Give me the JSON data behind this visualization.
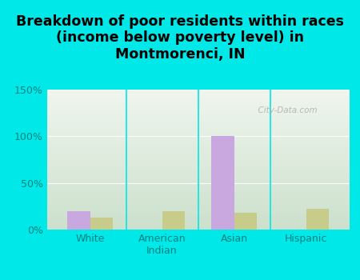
{
  "title": "Breakdown of poor residents within races\n(income below poverty level) in\nMontmorenci, IN",
  "categories": [
    "White",
    "American\nIndian",
    "Asian",
    "Hispanic"
  ],
  "montmorenci_values": [
    20,
    0,
    100,
    0
  ],
  "indiana_values": [
    13,
    20,
    18,
    22
  ],
  "montmorenci_color": "#c9a8e0",
  "indiana_color": "#c8cc8a",
  "background_color": "#00e8e8",
  "plot_bg_top": "#f0f5ee",
  "plot_bg_bottom": "#cce0cc",
  "ylim": [
    0,
    150
  ],
  "yticks": [
    0,
    50,
    100,
    150
  ],
  "ytick_labels": [
    "0%",
    "50%",
    "100%",
    "150%"
  ],
  "bar_width": 0.32,
  "title_fontsize": 12.5,
  "tick_fontsize": 9,
  "legend_fontsize": 10,
  "tick_color": "#008080",
  "watermark": "  City-Data.com"
}
